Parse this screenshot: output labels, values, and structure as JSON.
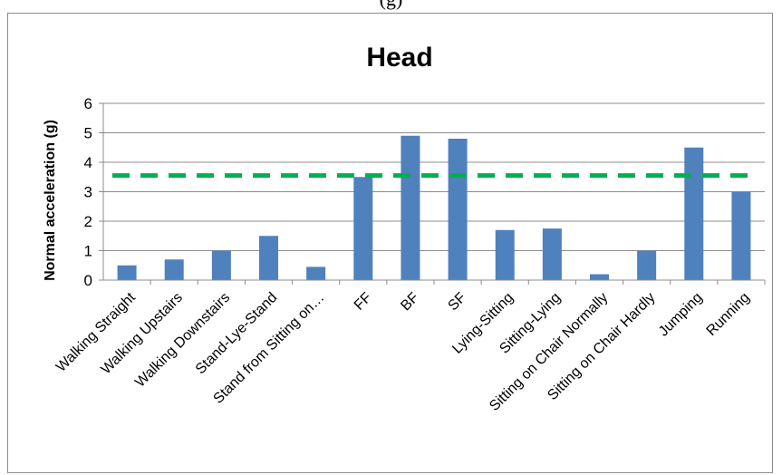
{
  "caption": "(g)",
  "chart_data": {
    "type": "bar",
    "title": "Head",
    "xlabel": "",
    "ylabel": "Normal acceleration (g)",
    "ylim": [
      0,
      6
    ],
    "yticks": [
      0,
      1,
      2,
      3,
      4,
      5,
      6
    ],
    "grid": true,
    "legend": "none",
    "bar_color": "#4f81bd",
    "threshold": {
      "value": 3.55,
      "color": "#00b050",
      "style": "dashed"
    },
    "categories": [
      "Walking Straight",
      "Walking Upstairs",
      "Walking Downstairs",
      "Stand-Lye-Stand",
      "Stand  from Sitting on…",
      "FF",
      "BF",
      "SF",
      "Lying-Sitting",
      "Sitting-Lying",
      "Sitting on Chair Normally",
      "Sitting on Chair Hardly",
      "Jumping",
      "Running"
    ],
    "values": [
      0.5,
      0.7,
      1.0,
      1.5,
      0.45,
      3.5,
      4.9,
      4.8,
      1.7,
      1.75,
      0.2,
      1.0,
      4.5,
      3.0
    ]
  }
}
